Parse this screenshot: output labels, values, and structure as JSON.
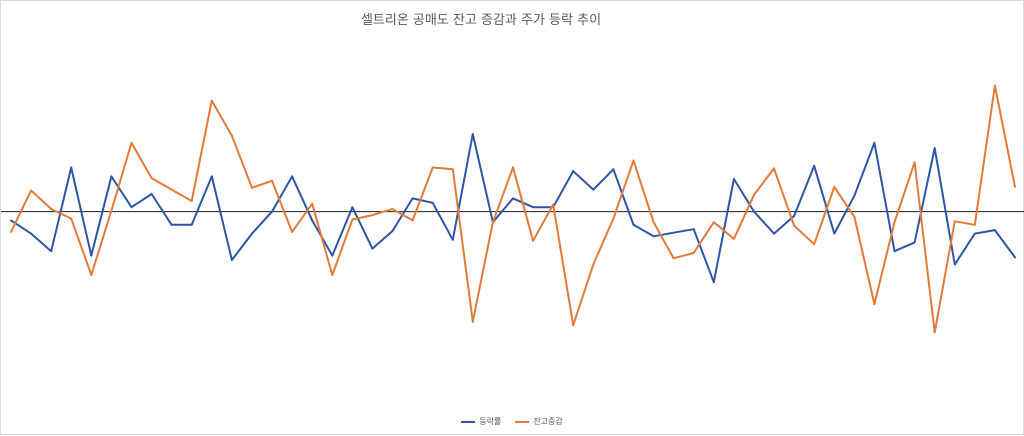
{
  "chart_data": {
    "type": "line",
    "title": "셀트리온 공매도 잔고 증감과 주가 등락 추이",
    "xlabel": "",
    "ylabel": "",
    "ylim": [
      -21.5,
      20.5
    ],
    "x": [
      1,
      2,
      3,
      4,
      5,
      6,
      7,
      8,
      9,
      10,
      11,
      12,
      13,
      14,
      15,
      16,
      17,
      18,
      19,
      20,
      21,
      22,
      23,
      24,
      25,
      26,
      27,
      28,
      29,
      30,
      31,
      32,
      33,
      34,
      35,
      36,
      37,
      38,
      39,
      40,
      41,
      42,
      43,
      44,
      45,
      46,
      47,
      48,
      49,
      50,
      51
    ],
    "series": [
      {
        "name": "등락률",
        "color": "#2f55a4",
        "values": [
          -1.0,
          -2.5,
          -4.5,
          5.0,
          -5.0,
          4.0,
          0.5,
          2.0,
          -1.5,
          -1.5,
          4.0,
          -5.5,
          -2.5,
          0.0,
          4.0,
          -1.0,
          -5.0,
          0.5,
          -4.2,
          -2.2,
          1.5,
          1.0,
          -3.2,
          8.8,
          -1.2,
          1.5,
          0.5,
          0.5,
          4.6,
          2.5,
          4.8,
          -1.5,
          -2.8,
          -2.4,
          -2.0,
          -8.0,
          3.7,
          0.0,
          -2.5,
          -0.5,
          5.2,
          -2.5,
          1.8,
          7.8,
          -4.5,
          -3.5,
          7.2,
          -6.0,
          -2.5,
          -2.1,
          -5.2
        ]
      },
      {
        "name": "잔고증감",
        "color": "#e07b39",
        "values": [
          -2.3,
          2.4,
          0.3,
          -0.8,
          -7.2,
          0.1,
          7.8,
          3.8,
          2.5,
          1.2,
          12.6,
          8.6,
          2.7,
          3.5,
          -2.3,
          0.9,
          -7.2,
          -0.9,
          -0.4,
          0.3,
          -1.0,
          5.0,
          4.8,
          -12.5,
          -1.2,
          5.0,
          -3.3,
          0.8,
          -12.9,
          -6.0,
          -0.8,
          5.8,
          -1.2,
          -5.3,
          -4.7,
          -1.2,
          -3.1,
          1.9,
          4.9,
          -1.6,
          -3.7,
          2.8,
          -0.6,
          -10.5,
          -1.2,
          5.6,
          -13.7,
          -1.1,
          -1.5,
          14.3,
          2.8
        ]
      }
    ],
    "grid": false,
    "legend_position": "bottom",
    "zero_line": true
  }
}
